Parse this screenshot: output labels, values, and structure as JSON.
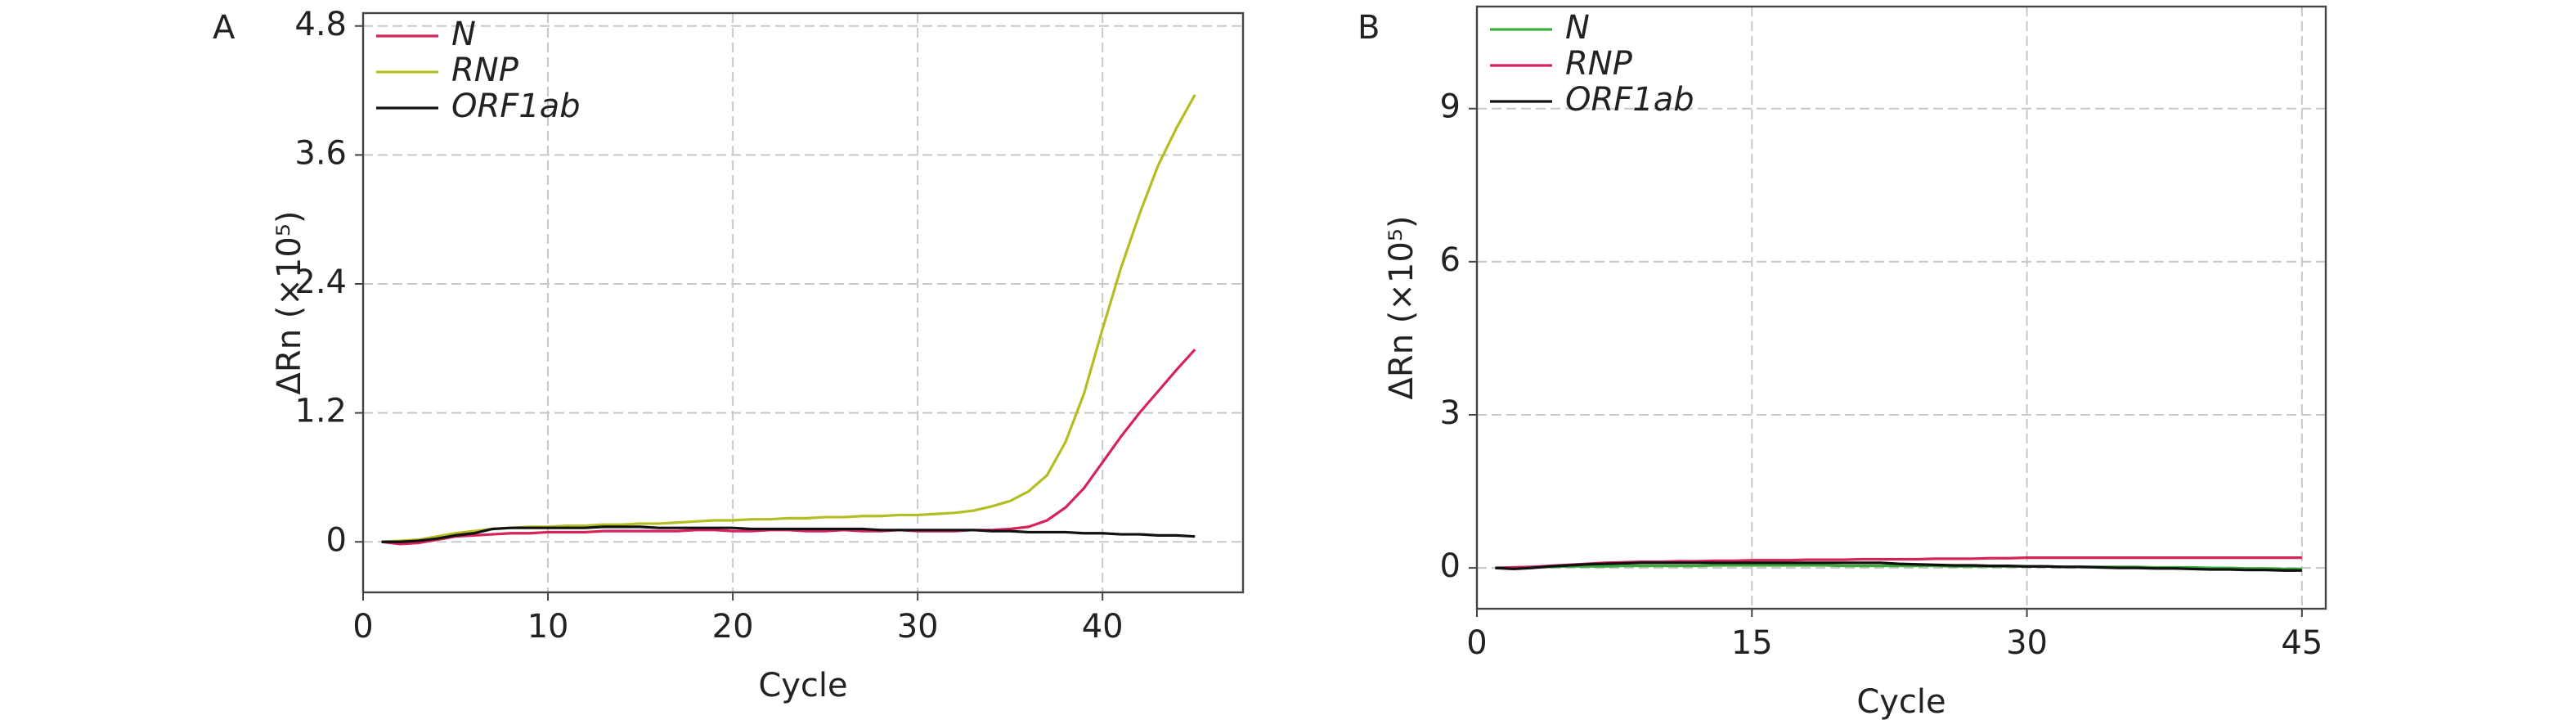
{
  "chart_data": [
    {
      "type": "line",
      "panel_label": "A",
      "xlabel": "Cycle",
      "ylabel": "ΔRn (×10⁵)",
      "x": [
        1,
        2,
        3,
        4,
        5,
        6,
        7,
        8,
        9,
        10,
        11,
        12,
        13,
        14,
        15,
        16,
        17,
        18,
        19,
        20,
        21,
        22,
        23,
        24,
        25,
        26,
        27,
        28,
        29,
        30,
        31,
        32,
        33,
        34,
        35,
        36,
        37,
        38,
        39,
        40,
        41,
        42,
        43,
        44,
        45
      ],
      "series": [
        {
          "name": "N",
          "color": "#d6245a",
          "values": [
            0,
            -0.02,
            -0.01,
            0.02,
            0.05,
            0.06,
            0.07,
            0.08,
            0.08,
            0.09,
            0.09,
            0.09,
            0.1,
            0.1,
            0.1,
            0.1,
            0.1,
            0.11,
            0.11,
            0.1,
            0.1,
            0.11,
            0.11,
            0.1,
            0.1,
            0.11,
            0.1,
            0.1,
            0.11,
            0.1,
            0.1,
            0.1,
            0.11,
            0.11,
            0.12,
            0.14,
            0.2,
            0.32,
            0.5,
            0.74,
            0.98,
            1.2,
            1.4,
            1.6,
            1.79
          ]
        },
        {
          "name": "RNP",
          "color": "#b4be22",
          "values": [
            0,
            0.01,
            0.02,
            0.05,
            0.08,
            0.1,
            0.12,
            0.13,
            0.14,
            0.14,
            0.15,
            0.15,
            0.16,
            0.16,
            0.17,
            0.17,
            0.18,
            0.19,
            0.2,
            0.2,
            0.21,
            0.21,
            0.22,
            0.22,
            0.23,
            0.23,
            0.24,
            0.24,
            0.25,
            0.25,
            0.26,
            0.27,
            0.29,
            0.33,
            0.38,
            0.47,
            0.62,
            0.93,
            1.38,
            1.98,
            2.55,
            3.05,
            3.5,
            3.85,
            4.16
          ]
        },
        {
          "name": "ORF1ab",
          "color": "#111111",
          "values": [
            0,
            0,
            0.01,
            0.03,
            0.06,
            0.08,
            0.12,
            0.13,
            0.13,
            0.13,
            0.13,
            0.13,
            0.14,
            0.14,
            0.14,
            0.13,
            0.13,
            0.13,
            0.13,
            0.13,
            0.12,
            0.12,
            0.12,
            0.12,
            0.12,
            0.12,
            0.12,
            0.11,
            0.11,
            0.11,
            0.11,
            0.11,
            0.11,
            0.1,
            0.1,
            0.09,
            0.09,
            0.09,
            0.08,
            0.08,
            0.07,
            0.07,
            0.06,
            0.06,
            0.05
          ]
        }
      ],
      "xlim": [
        0,
        47.6
      ],
      "ylim": [
        -0.47,
        4.92
      ],
      "xticks": [
        0,
        10,
        20,
        30,
        40
      ],
      "yticks": [
        0,
        1.2,
        2.4,
        3.6,
        4.8
      ],
      "grid": true,
      "legend": "upper left"
    },
    {
      "type": "line",
      "panel_label": "B",
      "xlabel": "Cycle",
      "ylabel": "ΔRn (×10⁵)",
      "x": [
        1,
        2,
        3,
        4,
        5,
        6,
        7,
        8,
        9,
        10,
        11,
        12,
        13,
        14,
        15,
        16,
        17,
        18,
        19,
        20,
        21,
        22,
        23,
        24,
        25,
        26,
        27,
        28,
        29,
        30,
        31,
        32,
        33,
        34,
        35,
        36,
        37,
        38,
        39,
        40,
        41,
        42,
        43,
        44,
        45
      ],
      "series": [
        {
          "name": "N",
          "color": "#3daa3d",
          "values": [
            0,
            0.01,
            0.02,
            0.02,
            0.03,
            0.03,
            0.03,
            0.04,
            0.04,
            0.04,
            0.04,
            0.04,
            0.05,
            0.05,
            0.05,
            0.05,
            0.05,
            0.05,
            0.05,
            0.04,
            0.04,
            0.04,
            0.04,
            0.04,
            0.04,
            0.03,
            0.03,
            0.03,
            0.03,
            0.03,
            0.03,
            0.02,
            0.02,
            0.02,
            0.02,
            0.02,
            0.01,
            0.01,
            0.01,
            0.0,
            0.0,
            -0.01,
            -0.01,
            -0.02,
            -0.02
          ]
        },
        {
          "name": "RNP",
          "color": "#d6245a",
          "values": [
            0,
            0.01,
            0.02,
            0.04,
            0.06,
            0.08,
            0.1,
            0.11,
            0.12,
            0.12,
            0.13,
            0.13,
            0.14,
            0.14,
            0.15,
            0.15,
            0.15,
            0.16,
            0.16,
            0.16,
            0.17,
            0.17,
            0.17,
            0.17,
            0.18,
            0.18,
            0.18,
            0.19,
            0.19,
            0.2,
            0.2,
            0.2,
            0.2,
            0.2,
            0.2,
            0.2,
            0.2,
            0.2,
            0.2,
            0.2,
            0.2,
            0.2,
            0.2,
            0.2,
            0.2
          ]
        },
        {
          "name": "ORF1ab",
          "color": "#111111",
          "values": [
            0,
            -0.02,
            0,
            0.03,
            0.05,
            0.07,
            0.08,
            0.09,
            0.1,
            0.1,
            0.1,
            0.1,
            0.1,
            0.1,
            0.1,
            0.1,
            0.1,
            0.1,
            0.1,
            0.1,
            0.1,
            0.1,
            0.08,
            0.07,
            0.06,
            0.05,
            0.05,
            0.04,
            0.04,
            0.03,
            0.03,
            0.02,
            0.02,
            0.01,
            0.0,
            0.0,
            -0.01,
            -0.01,
            -0.02,
            -0.03,
            -0.03,
            -0.04,
            -0.04,
            -0.05,
            -0.05
          ]
        }
      ],
      "xlim": [
        0,
        46.3
      ],
      "ylim": [
        -0.8,
        11.0
      ],
      "xticks": [
        0,
        15,
        30,
        45
      ],
      "yticks": [
        0,
        3,
        6,
        9
      ],
      "grid": true,
      "legend": "upper left"
    }
  ]
}
